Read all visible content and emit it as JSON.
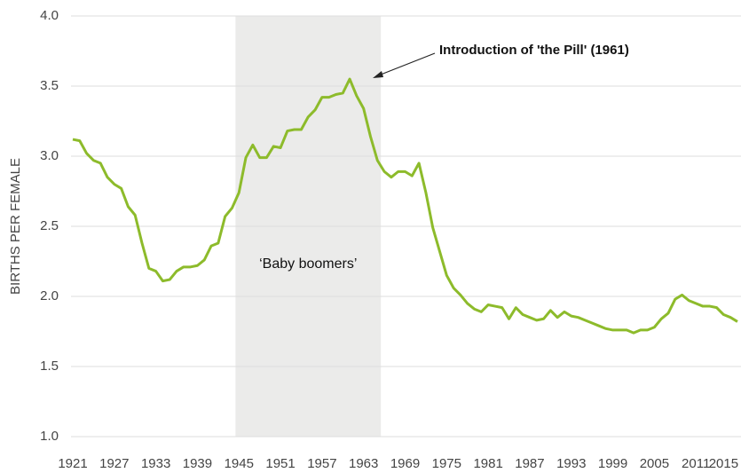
{
  "chart_data": {
    "type": "line",
    "y_label": "BIRTHS PER FEMALE",
    "annotations": [
      "Introduction of 'the Pill' (1961)",
      "‘Baby boomers’"
    ],
    "shade": [
      1944.5,
      1965.5
    ],
    "shade_color": "#ebebea",
    "x": [
      1921,
      1922,
      1923,
      1924,
      1925,
      1926,
      1927,
      1928,
      1929,
      1930,
      1931,
      1932,
      1933,
      1934,
      1935,
      1936,
      1937,
      1938,
      1939,
      1940,
      1941,
      1942,
      1943,
      1944,
      1945,
      1946,
      1947,
      1948,
      1949,
      1950,
      1951,
      1952,
      1953,
      1954,
      1955,
      1956,
      1957,
      1958,
      1959,
      1960,
      1961,
      1962,
      1963,
      1964,
      1965,
      1966,
      1967,
      1968,
      1969,
      1970,
      1971,
      1972,
      1973,
      1974,
      1975,
      1976,
      1977,
      1978,
      1979,
      1980,
      1981,
      1982,
      1983,
      1984,
      1985,
      1986,
      1987,
      1988,
      1989,
      1990,
      1991,
      1992,
      1993,
      1994,
      1995,
      1996,
      1997,
      1998,
      1999,
      2000,
      2001,
      2002,
      2003,
      2004,
      2005,
      2006,
      2007,
      2008,
      2009,
      2010,
      2011,
      2012,
      2013,
      2014,
      2015,
      2016,
      2017
    ],
    "series": [
      {
        "name": "Births per female",
        "color": "#8dbb2b",
        "values": [
          3.12,
          3.11,
          3.02,
          2.97,
          2.95,
          2.85,
          2.8,
          2.77,
          2.64,
          2.58,
          2.38,
          2.2,
          2.18,
          2.11,
          2.12,
          2.18,
          2.21,
          2.21,
          2.22,
          2.26,
          2.36,
          2.38,
          2.57,
          2.63,
          2.74,
          2.99,
          3.08,
          2.99,
          2.99,
          3.07,
          3.06,
          3.18,
          3.19,
          3.19,
          3.28,
          3.33,
          3.42,
          3.42,
          3.44,
          3.45,
          3.55,
          3.43,
          3.34,
          3.14,
          2.97,
          2.89,
          2.85,
          2.89,
          2.89,
          2.86,
          2.95,
          2.74,
          2.49,
          2.32,
          2.15,
          2.06,
          2.01,
          1.95,
          1.91,
          1.89,
          1.94,
          1.93,
          1.92,
          1.84,
          1.92,
          1.87,
          1.85,
          1.83,
          1.84,
          1.9,
          1.85,
          1.89,
          1.86,
          1.85,
          1.83,
          1.81,
          1.79,
          1.77,
          1.76,
          1.76,
          1.76,
          1.74,
          1.76,
          1.76,
          1.78,
          1.84,
          1.88,
          1.98,
          2.01,
          1.97,
          1.95,
          1.93,
          1.93,
          1.92,
          1.87,
          1.85,
          1.82
        ]
      }
    ],
    "xlim": [
      1921,
      2017
    ],
    "xticks": [
      1921,
      1927,
      1933,
      1939,
      1945,
      1951,
      1957,
      1963,
      1969,
      1975,
      1981,
      1987,
      1993,
      1999,
      2005,
      2011,
      2015
    ],
    "ylim": [
      1.0,
      4.0
    ],
    "yticks": [
      {
        "value": 1.0,
        "label": "1.0"
      },
      {
        "value": 1.5,
        "label": "1.5"
      },
      {
        "value": 2.0,
        "label": "2.0"
      },
      {
        "value": 2.5,
        "label": "2.5"
      },
      {
        "value": 3.0,
        "label": "3.0"
      },
      {
        "value": 3.5,
        "label": "3.5"
      },
      {
        "value": 4.0,
        "label": "4.0"
      }
    ],
    "grid": true
  }
}
